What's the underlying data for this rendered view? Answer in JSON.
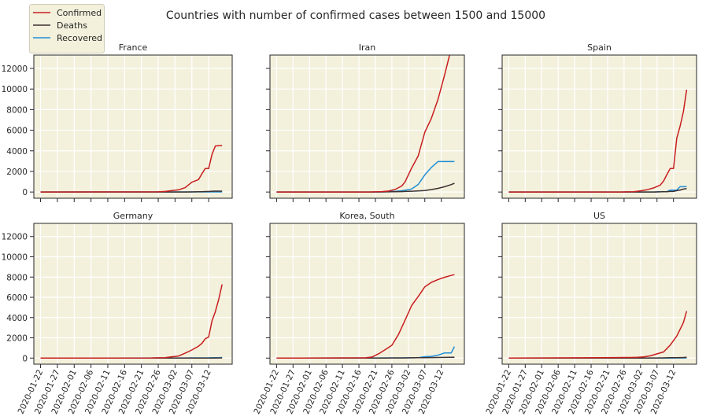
{
  "chart_data": {
    "type": "line",
    "title": "Countries with number of confirmed cases between 1500 and 15000",
    "legend": {
      "placement": "top-left",
      "entries": [
        {
          "name": "Confirmed",
          "color": "#c81e1e"
        },
        {
          "name": "Deaths",
          "color": "#3d3131"
        },
        {
          "name": "Recovered",
          "color": "#1f8fd6"
        }
      ]
    },
    "x_ticks": [
      "2020-01-22",
      "2020-01-27",
      "2020-02-01",
      "2020-02-06",
      "2020-02-11",
      "2020-02-16",
      "2020-02-21",
      "2020-02-26",
      "2020-03-02",
      "2020-03-07",
      "2020-03-12"
    ],
    "y_ticks": [
      0,
      2000,
      4000,
      6000,
      8000,
      10000,
      12000
    ],
    "ylim": [
      -600,
      13300
    ],
    "xlim": [
      "2020-01-20",
      "2020-03-19"
    ],
    "grid": true,
    "background": "#f3f0dc",
    "panels": [
      {
        "title": "France",
        "dates": [
          "2020-02-26",
          "2020-02-28",
          "2020-03-01",
          "2020-03-03",
          "2020-03-05",
          "2020-03-07",
          "2020-03-09",
          "2020-03-10",
          "2020-03-11",
          "2020-03-12",
          "2020-03-13",
          "2020-03-14",
          "2020-03-15",
          "2020-03-16"
        ],
        "series": [
          {
            "name": "Confirmed",
            "values": [
              18,
              57,
              130,
              212,
              423,
              949,
              1209,
              1784,
              2281,
              2281,
              3661,
              4469,
              4499,
              4513
            ]
          },
          {
            "name": "Deaths",
            "values": [
              2,
              2,
              2,
              4,
              7,
              11,
              25,
              33,
              48,
              48,
              79,
              91,
              91,
              91
            ]
          },
          {
            "name": "Recovered",
            "values": [
              12,
              12,
              12,
              12,
              12,
              12,
              12,
              12,
              12,
              12,
              12,
              12,
              12,
              12
            ]
          }
        ]
      },
      {
        "title": "Iran",
        "dates": [
          "2020-02-19",
          "2020-02-21",
          "2020-02-23",
          "2020-02-25",
          "2020-02-27",
          "2020-02-29",
          "2020-03-01",
          "2020-03-03",
          "2020-03-05",
          "2020-03-07",
          "2020-03-09",
          "2020-03-11",
          "2020-03-13",
          "2020-03-15",
          "2020-03-16"
        ],
        "series": [
          {
            "name": "Confirmed",
            "values": [
              2,
              18,
              43,
              95,
              245,
              593,
              978,
              2336,
              3513,
              5823,
              7161,
              9000,
              11364,
              13938,
              14991
            ]
          },
          {
            "name": "Deaths",
            "values": [
              2,
              4,
              8,
              16,
              26,
              43,
              54,
              77,
              107,
              145,
              237,
              354,
              514,
              724,
              853
            ]
          },
          {
            "name": "Recovered",
            "values": [
              0,
              0,
              0,
              49,
              73,
              123,
              175,
              291,
              739,
              1669,
              2394,
              2959,
              2959,
              2959,
              2959
            ]
          }
        ]
      },
      {
        "title": "Spain",
        "dates": [
          "2020-02-25",
          "2020-02-27",
          "2020-02-29",
          "2020-03-02",
          "2020-03-04",
          "2020-03-06",
          "2020-03-08",
          "2020-03-09",
          "2020-03-10",
          "2020-03-11",
          "2020-03-12",
          "2020-03-13",
          "2020-03-14",
          "2020-03-15",
          "2020-03-16"
        ],
        "series": [
          {
            "name": "Confirmed",
            "values": [
              6,
              15,
              32,
              120,
              222,
              400,
              673,
              1073,
              1695,
              2277,
              2277,
              5232,
              6391,
              7798,
              9942
            ]
          },
          {
            "name": "Deaths",
            "values": [
              0,
              0,
              0,
              0,
              2,
              5,
              17,
              28,
              35,
              54,
              55,
              133,
              195,
              289,
              342
            ]
          },
          {
            "name": "Recovered",
            "values": [
              2,
              2,
              2,
              2,
              2,
              2,
              30,
              32,
              32,
              183,
              183,
              193,
              517,
              517,
              530
            ]
          }
        ]
      },
      {
        "title": "Germany",
        "dates": [
          "2020-02-24",
          "2020-02-26",
          "2020-02-28",
          "2020-03-01",
          "2020-03-03",
          "2020-03-05",
          "2020-03-07",
          "2020-03-09",
          "2020-03-10",
          "2020-03-11",
          "2020-03-12",
          "2020-03-13",
          "2020-03-14",
          "2020-03-15",
          "2020-03-16"
        ],
        "series": [
          {
            "name": "Confirmed",
            "values": [
              16,
              27,
              48,
              130,
              196,
              482,
              799,
              1176,
              1457,
              1908,
              2078,
              3675,
              4585,
              5795,
              7272
            ]
          },
          {
            "name": "Deaths",
            "values": [
              0,
              0,
              0,
              0,
              0,
              0,
              0,
              2,
              2,
              3,
              3,
              7,
              9,
              11,
              17
            ]
          },
          {
            "name": "Recovered",
            "values": [
              14,
              15,
              16,
              16,
              16,
              16,
              18,
              18,
              18,
              25,
              25,
              46,
              46,
              46,
              67
            ]
          }
        ]
      },
      {
        "title": "Korea, South",
        "dates": [
          "2020-02-18",
          "2020-02-20",
          "2020-02-22",
          "2020-02-24",
          "2020-02-26",
          "2020-02-28",
          "2020-03-01",
          "2020-03-03",
          "2020-03-05",
          "2020-03-07",
          "2020-03-09",
          "2020-03-11",
          "2020-03-13",
          "2020-03-15",
          "2020-03-16"
        ],
        "series": [
          {
            "name": "Confirmed",
            "values": [
              31,
              104,
              433,
              833,
              1261,
              2337,
              3736,
              5186,
              6088,
              7041,
              7478,
              7755,
              7979,
              8162,
              8236
            ]
          },
          {
            "name": "Deaths",
            "values": [
              0,
              1,
              2,
              8,
              12,
              13,
              17,
              28,
              35,
              44,
              53,
              60,
              67,
              75,
              75
            ]
          },
          {
            "name": "Recovered",
            "values": [
              12,
              16,
              16,
              18,
              22,
              22,
              30,
              30,
              41,
              135,
              166,
              288,
              510,
              510,
              1137
            ]
          }
        ]
      },
      {
        "title": "US",
        "dates": [
          "2020-02-24",
          "2020-02-26",
          "2020-02-28",
          "2020-03-01",
          "2020-03-03",
          "2020-03-05",
          "2020-03-07",
          "2020-03-09",
          "2020-03-11",
          "2020-03-13",
          "2020-03-15",
          "2020-03-16"
        ],
        "series": [
          {
            "name": "Confirmed",
            "values": [
              51,
              59,
              62,
              74,
              122,
              221,
              417,
              605,
              1281,
              2179,
              3499,
              4632
            ]
          },
          {
            "name": "Deaths",
            "values": [
              0,
              0,
              0,
              1,
              7,
              12,
              17,
              22,
              36,
              47,
              63,
              85
            ]
          },
          {
            "name": "Recovered",
            "values": [
              5,
              6,
              7,
              7,
              7,
              7,
              7,
              8,
              8,
              12,
              12,
              17
            ]
          }
        ]
      }
    ]
  }
}
